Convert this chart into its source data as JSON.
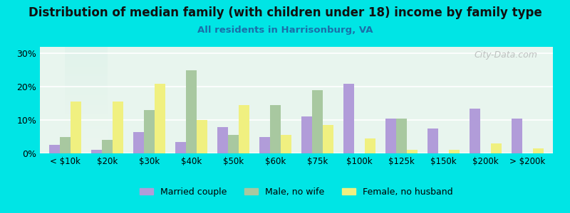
{
  "title": "Distribution of median family (with children under 18) income by family type",
  "subtitle": "All residents in Harrisonburg, VA",
  "categories": [
    "< $10k",
    "$20k",
    "$30k",
    "$40k",
    "$50k",
    "$60k",
    "$75k",
    "$100k",
    "$125k",
    "$150k",
    "$200k",
    "> $200k"
  ],
  "married_couple": [
    2.5,
    1.0,
    6.5,
    3.5,
    8.0,
    5.0,
    11.0,
    21.0,
    10.5,
    7.5,
    13.5,
    10.5
  ],
  "male_no_wife": [
    5.0,
    4.0,
    13.0,
    25.0,
    5.5,
    14.5,
    19.0,
    0.0,
    10.5,
    0.0,
    0.0,
    0.0
  ],
  "female_no_husband": [
    15.5,
    15.5,
    21.0,
    10.0,
    14.5,
    5.5,
    8.5,
    4.5,
    1.0,
    1.0,
    3.0,
    1.5
  ],
  "married_color": "#b19cd9",
  "male_color": "#a8c8a0",
  "female_color": "#f0f080",
  "bg_color_top": "#e8f8f8",
  "bg_color_bottom": "#e8f5e8",
  "plot_bg_top": "#e0f4f4",
  "plot_bg_bottom": "#e8f5e8",
  "ylim": [
    0,
    32
  ],
  "yticks": [
    0,
    10,
    20,
    30
  ],
  "ytick_labels": [
    "0%",
    "10%",
    "20%",
    "30%"
  ],
  "watermark": "City-Data.com",
  "bar_width": 0.25,
  "legend_labels": [
    "Married couple",
    "Male, no wife",
    "Female, no husband"
  ]
}
